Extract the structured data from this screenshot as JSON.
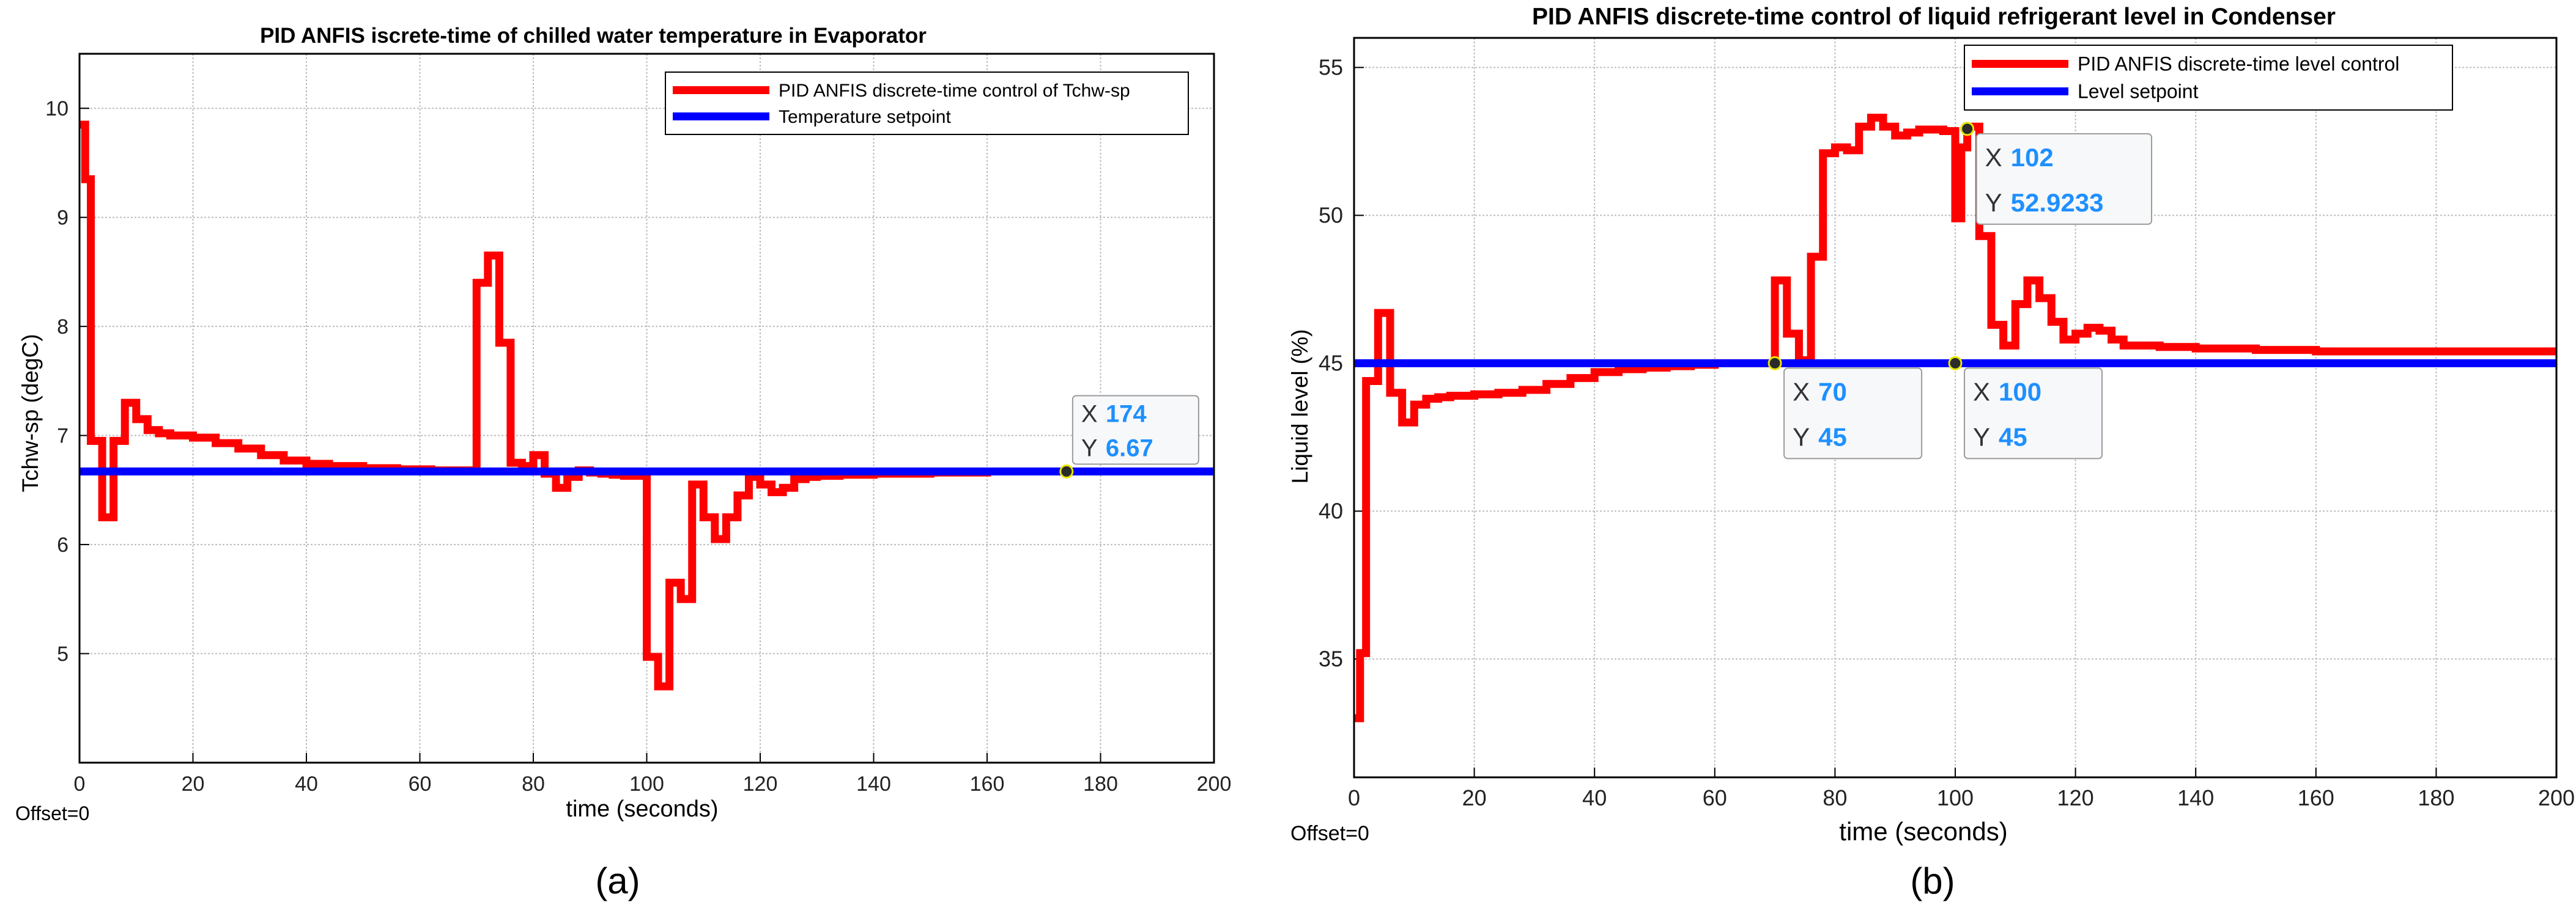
{
  "colors": {
    "response": "#ff0000",
    "setpoint": "#0000ff",
    "datatip_value": "#1e90ff",
    "grid": "#bdbdbd",
    "axes": "#000000",
    "background": "#ffffff"
  },
  "chart_data": [
    {
      "type": "line",
      "panel_label": "(a)",
      "title": "PID ANFIS iscrete-time of chilled water temperature in Evaporator",
      "xlabel": "time (seconds)",
      "ylabel": "Tchw-sp (degC)",
      "offset_text": "Offset=0",
      "xlim": [
        0,
        200
      ],
      "ylim": [
        4,
        10.5
      ],
      "xticks": [
        "0",
        "20",
        "40",
        "60",
        "80",
        "100",
        "120",
        "140",
        "160",
        "180",
        "200"
      ],
      "yticks": [
        "5",
        "6",
        "7",
        "8",
        "9",
        "10"
      ],
      "grid": true,
      "step": true,
      "legend_position": "top-right",
      "series": [
        {
          "name": "PID ANFIS discrete-time control of  Tchw-sp",
          "color": "#ff0000",
          "x": [
            0,
            1,
            2,
            4,
            6,
            8,
            10,
            12,
            14,
            16,
            20,
            24,
            28,
            32,
            36,
            40,
            44,
            50,
            56,
            62,
            68,
            70,
            72,
            74,
            76,
            78,
            80,
            82,
            84,
            86,
            88,
            90,
            92,
            94,
            96,
            98,
            100,
            102,
            104,
            106,
            108,
            110,
            112,
            114,
            116,
            118,
            120,
            122,
            124,
            126,
            128,
            130,
            134,
            140,
            150,
            160,
            174,
            200
          ],
          "y": [
            9.85,
            9.35,
            6.95,
            6.25,
            6.95,
            7.3,
            7.15,
            7.05,
            7.02,
            7.0,
            6.98,
            6.93,
            6.88,
            6.82,
            6.77,
            6.74,
            6.72,
            6.7,
            6.69,
            6.68,
            6.68,
            8.4,
            8.65,
            7.85,
            6.75,
            6.72,
            6.82,
            6.65,
            6.52,
            6.62,
            6.68,
            6.66,
            6.65,
            6.64,
            6.63,
            6.63,
            4.97,
            4.7,
            5.65,
            5.5,
            6.55,
            6.25,
            6.05,
            6.25,
            6.45,
            6.62,
            6.55,
            6.48,
            6.52,
            6.6,
            6.62,
            6.63,
            6.64,
            6.65,
            6.66,
            6.67,
            6.67,
            6.67
          ]
        },
        {
          "name": "Temperature setpoint",
          "color": "#0000ff",
          "x": [
            0,
            200
          ],
          "y": [
            6.67,
            6.67
          ]
        }
      ],
      "datatips": [
        {
          "x": 174,
          "y": 6.67,
          "x_label": "X",
          "y_label": "Y",
          "x_text": "174",
          "y_text": "6.67",
          "placement": "above"
        }
      ]
    },
    {
      "type": "line",
      "panel_label": "(b)",
      "title": "PID ANFIS discrete-time control of liquid  refrigerant level in Condenser",
      "xlabel": "time (seconds)",
      "ylabel": "Liquid level (%)",
      "offset_text": "Offset=0",
      "xlim": [
        0,
        200
      ],
      "ylim": [
        31,
        56
      ],
      "xticks": [
        "0",
        "20",
        "40",
        "60",
        "80",
        "100",
        "120",
        "140",
        "160",
        "180",
        "200"
      ],
      "yticks": [
        "35",
        "40",
        "45",
        "50",
        "55"
      ],
      "grid": true,
      "step": true,
      "legend_position": "top-right",
      "series": [
        {
          "name": "PID ANFIS discrete-time level control",
          "color": "#ff0000",
          "x": [
            0,
            1,
            2,
            4,
            6,
            8,
            10,
            12,
            14,
            16,
            20,
            24,
            28,
            32,
            36,
            40,
            44,
            48,
            52,
            56,
            60,
            64,
            68,
            70,
            72,
            74,
            76,
            78,
            80,
            82,
            84,
            86,
            88,
            90,
            92,
            94,
            96,
            98,
            100,
            101,
            102,
            104,
            106,
            108,
            110,
            112,
            114,
            116,
            118,
            120,
            122,
            124,
            126,
            128,
            130,
            134,
            140,
            150,
            160,
            180,
            200
          ],
          "y": [
            33.0,
            35.2,
            44.4,
            46.7,
            44.0,
            43.0,
            43.6,
            43.8,
            43.85,
            43.9,
            43.95,
            44.0,
            44.1,
            44.3,
            44.5,
            44.7,
            44.8,
            44.85,
            44.9,
            44.95,
            45.0,
            45.0,
            45.0,
            47.8,
            46.0,
            45.1,
            48.6,
            52.1,
            52.3,
            52.2,
            53.0,
            53.3,
            53.0,
            52.7,
            52.8,
            52.9,
            52.9,
            52.85,
            49.9,
            52.3,
            53.0,
            49.3,
            46.3,
            45.6,
            47.0,
            47.8,
            47.2,
            46.4,
            45.8,
            46.0,
            46.2,
            46.1,
            45.8,
            45.6,
            45.6,
            45.55,
            45.5,
            45.45,
            45.4,
            45.4,
            45.4
          ]
        },
        {
          "name": "Level setpoint",
          "color": "#0000ff",
          "x": [
            0,
            200
          ],
          "y": [
            45,
            45
          ]
        }
      ],
      "datatips": [
        {
          "x": 102,
          "y": 52.9233,
          "x_label": "X",
          "y_label": "Y",
          "x_text": "102",
          "y_text": "52.9233",
          "placement": "below"
        },
        {
          "x": 70,
          "y": 45,
          "x_label": "X",
          "y_label": "Y",
          "x_text": "70",
          "y_text": "45",
          "placement": "below"
        },
        {
          "x": 100,
          "y": 45,
          "x_label": "X",
          "y_label": "Y",
          "x_text": "100",
          "y_text": "45",
          "placement": "below"
        }
      ]
    }
  ]
}
